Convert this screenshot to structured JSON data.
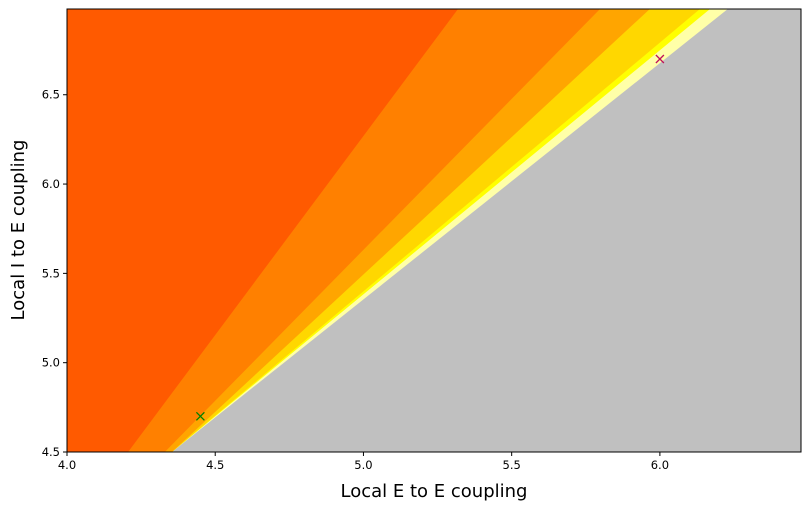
{
  "chart_data": {
    "type": "contour",
    "xlabel": "Local E to E coupling",
    "ylabel": "Local I to E coupling",
    "xlim": [
      4.0,
      6.476
    ],
    "ylim": [
      4.5,
      6.98
    ],
    "xticks": [
      {
        "value": 4.0,
        "label": "4.0"
      },
      4.5,
      {
        "value": 5.0,
        "label": "5.0"
      },
      5.5,
      {
        "value": 6.0,
        "label": "6.0"
      }
    ],
    "yticks": [
      4.5,
      {
        "value": 5.0,
        "label": "5.0"
      },
      5.5,
      {
        "value": 6.0,
        "label": "6.0"
      },
      6.5
    ],
    "background": "#c0c0c0",
    "regions": [
      {
        "color": "#ffffa8",
        "x": [
          4.0,
          4.354,
          6.229,
          4.0
        ],
        "y": [
          4.5,
          4.5,
          6.98,
          6.98
        ]
      },
      {
        "color": "#ffff00",
        "x": [
          4.0,
          4.354,
          6.169,
          4.0
        ],
        "y": [
          4.5,
          4.5,
          6.98,
          6.98
        ]
      },
      {
        "color": "#ffd700",
        "x": [
          4.0,
          4.354,
          6.135,
          4.0
        ],
        "y": [
          4.5,
          4.5,
          6.98,
          6.98
        ]
      },
      {
        "color": "#ffa500",
        "x": [
          4.0,
          4.354,
          5.966,
          4.0
        ],
        "y": [
          4.5,
          4.5,
          6.98,
          6.98
        ]
      },
      {
        "color": "#ff8000",
        "x": [
          4.0,
          4.33,
          5.798,
          4.0
        ],
        "y": [
          4.5,
          4.5,
          6.98,
          6.98
        ]
      },
      {
        "color": "#ff5a00",
        "x": [
          4.0,
          4.206,
          5.319,
          4.0
        ],
        "y": [
          4.5,
          4.5,
          6.98,
          6.98
        ]
      }
    ],
    "points": [
      {
        "x": 4.45,
        "y": 4.7,
        "color": "#008000"
      },
      {
        "x": 6.0,
        "y": 6.7,
        "color": "#c0105a"
      }
    ]
  }
}
